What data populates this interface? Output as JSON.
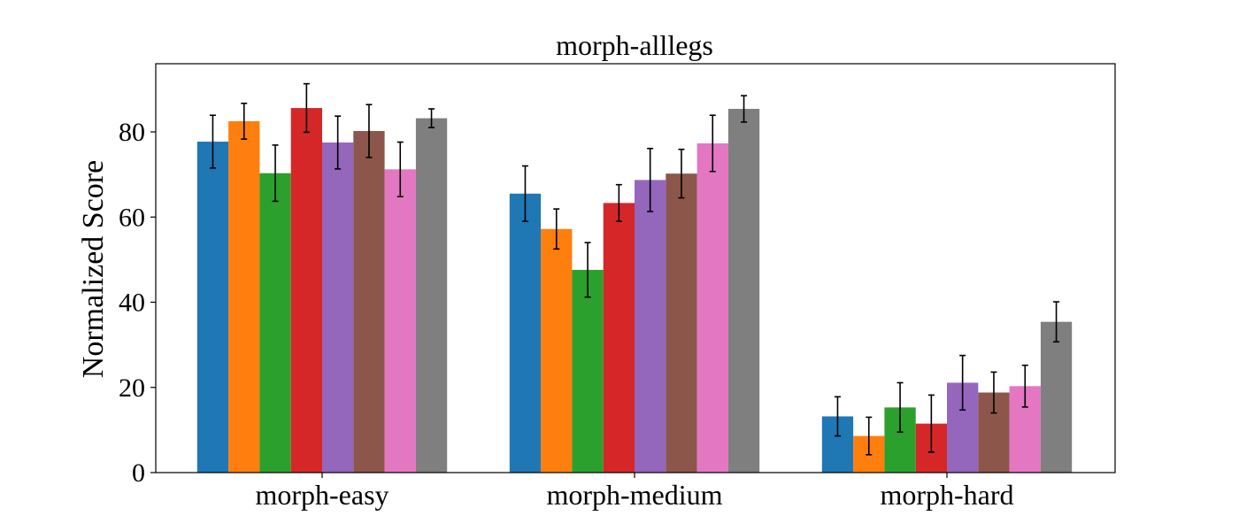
{
  "chart_data": {
    "type": "bar",
    "title": "morph-alllegs",
    "ylabel": "Normalized Score",
    "xlabel": "",
    "categories": [
      "morph-easy",
      "morph-medium",
      "morph-hard"
    ],
    "ylim": [
      0,
      96
    ],
    "yticks": [
      0,
      20,
      40,
      60,
      80
    ],
    "error_bars": true,
    "legend": "none",
    "series": [
      {
        "color": "#1f77b4",
        "values": [
          77.7,
          65.5,
          13.2
        ],
        "errors": [
          6.2,
          6.5,
          4.6
        ]
      },
      {
        "color": "#ff7f0e",
        "values": [
          82.5,
          57.2,
          8.6
        ],
        "errors": [
          4.2,
          4.7,
          4.4
        ]
      },
      {
        "color": "#2ca02c",
        "values": [
          70.3,
          47.6,
          15.3
        ],
        "errors": [
          6.6,
          6.4,
          5.8
        ]
      },
      {
        "color": "#d62728",
        "values": [
          85.6,
          63.3,
          11.5
        ],
        "errors": [
          5.7,
          4.3,
          6.7
        ]
      },
      {
        "color": "#9467bd",
        "values": [
          77.5,
          68.7,
          21.1
        ],
        "errors": [
          6.2,
          7.4,
          6.4
        ]
      },
      {
        "color": "#8c564b",
        "values": [
          80.2,
          70.2,
          18.8
        ],
        "errors": [
          6.2,
          5.7,
          4.8
        ]
      },
      {
        "color": "#e377c2",
        "values": [
          71.2,
          77.3,
          20.3
        ],
        "errors": [
          6.4,
          6.6,
          4.9
        ]
      },
      {
        "color": "#7f7f7f",
        "values": [
          83.2,
          85.4,
          35.4
        ],
        "errors": [
          2.2,
          3.1,
          4.7
        ]
      }
    ]
  }
}
